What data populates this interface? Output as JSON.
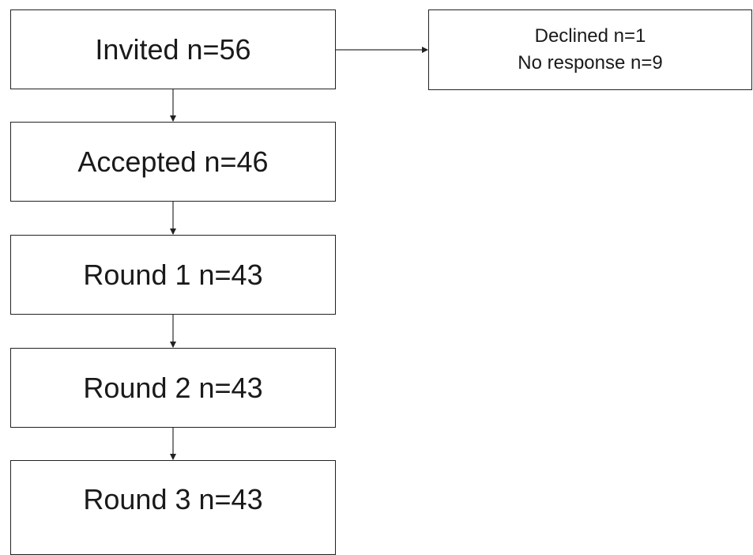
{
  "flow": {
    "invited": "Invited n=56",
    "accepted": "Accepted n=46",
    "round1": "Round 1 n=43",
    "round2": "Round 2 n=43",
    "round3": "Round 3 n=43"
  },
  "excluded": {
    "declined": "Declined n=1",
    "no_response": "No response n=9"
  }
}
